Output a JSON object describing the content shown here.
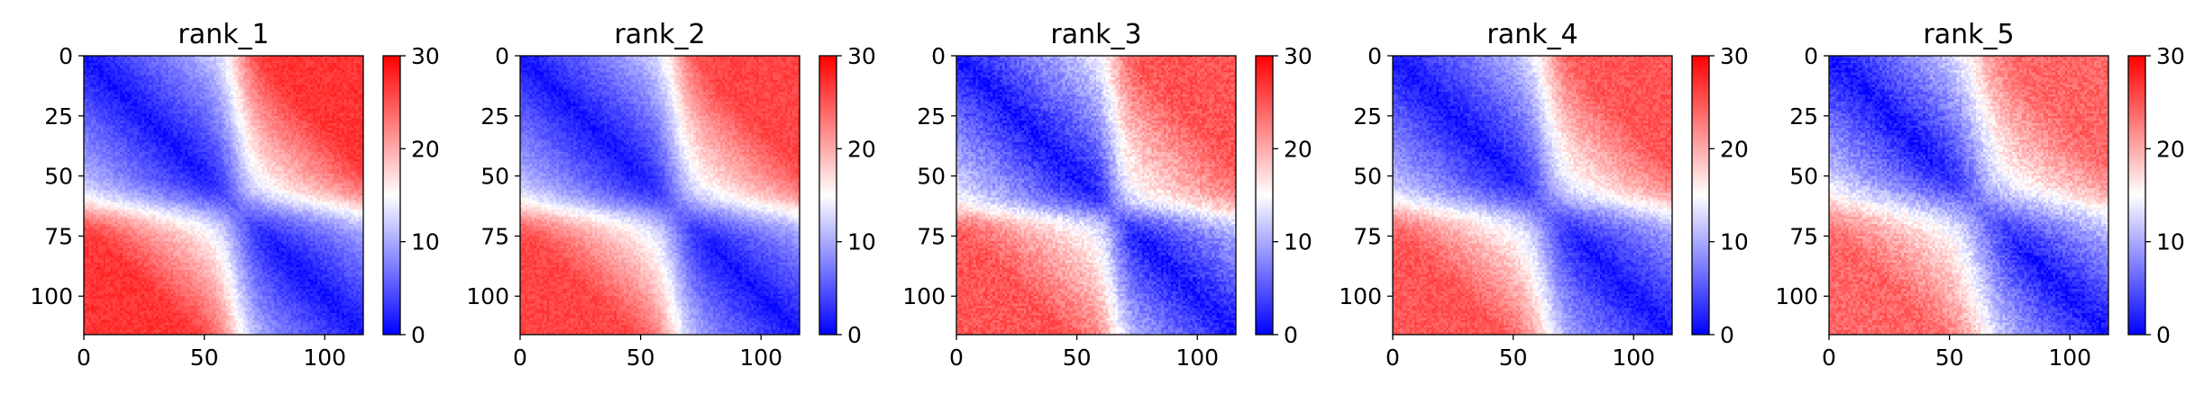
{
  "chart_data": {
    "type": "heatmap",
    "colormap": "bwr",
    "colors": {
      "low": "#0000ff",
      "mid": "#ffffff",
      "high": "#ff0000"
    },
    "matrix_size": 116,
    "xlim": [
      0,
      116
    ],
    "ylim": [
      116,
      0
    ],
    "clim": [
      0,
      30
    ],
    "x_ticks": [
      0,
      50,
      100
    ],
    "y_ticks": [
      0,
      25,
      50,
      75,
      100
    ],
    "colorbar_ticks": [
      0,
      10,
      20,
      30
    ],
    "panels": [
      {
        "title": "rank_1",
        "split": 63,
        "soft": 4,
        "diag_min": 1,
        "near": 7,
        "far": 27,
        "noise": 1.2
      },
      {
        "title": "rank_2",
        "split": 64,
        "soft": 4,
        "diag_min": 1,
        "near": 7,
        "far": 26,
        "noise": 1.2
      },
      {
        "title": "rank_3",
        "split": 65,
        "soft": 3,
        "diag_min": 1,
        "near": 8,
        "far": 25,
        "noise": 1.8
      },
      {
        "title": "rank_4",
        "split": 63,
        "soft": 4,
        "diag_min": 1,
        "near": 7,
        "far": 25,
        "noise": 1.5
      },
      {
        "title": "rank_5",
        "split": 62,
        "soft": 5,
        "diag_min": 1,
        "near": 8,
        "far": 24,
        "noise": 1.8
      }
    ]
  }
}
